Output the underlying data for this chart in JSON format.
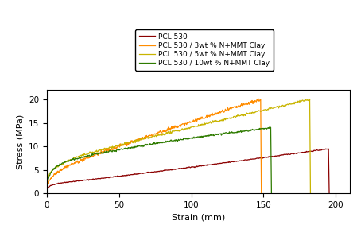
{
  "title": "",
  "xlabel": "Strain (mm)",
  "ylabel": "Stress (MPa)",
  "xlim": [
    0,
    210
  ],
  "ylim": [
    0,
    22
  ],
  "xticks": [
    0,
    50,
    100,
    150,
    200
  ],
  "yticks": [
    0,
    5,
    10,
    15,
    20
  ],
  "legend_labels": [
    "PCL 530",
    "PCL 530 / 3wt % N+MMT Clay",
    "PCL 530 / 5wt % N+MMT Clay",
    "PCL 530 / 10wt % N+MMT Clay"
  ],
  "line_colors": [
    "#8B0000",
    "#FF8C00",
    "#C8B400",
    "#2E7B00"
  ],
  "background_color": "#ffffff",
  "plot_bg": "#ffffff",
  "figsize": [
    4.54,
    2.83
  ],
  "dpi": 100
}
